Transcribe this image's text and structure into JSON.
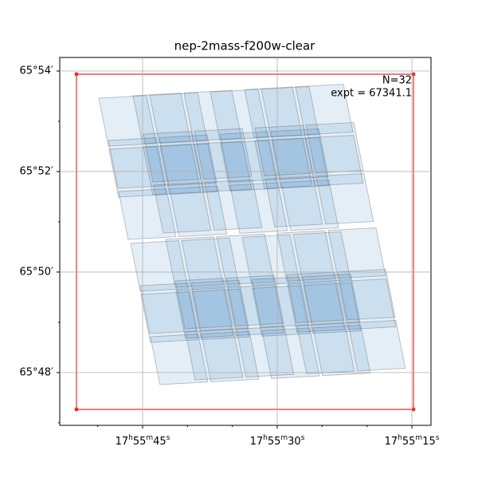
{
  "chart_data": {
    "type": "footprint",
    "title": "nep-2mass-f200w-clear",
    "annotations": [
      "N=32",
      "expt = 67341.1"
    ],
    "xlim": [
      54.23,
      12.87
    ],
    "xticks": [
      {
        "value": 45,
        "label": "17h55m45s"
      },
      {
        "value": 30,
        "label": "17h55m30s"
      },
      {
        "value": 15,
        "label": "17h55m15s"
      }
    ],
    "xminorticks": [
      50,
      40,
      35,
      25,
      20
    ],
    "ylim": [
      46.95,
      54.27
    ],
    "yticks": [
      {
        "value": 54,
        "label": "65°54′"
      },
      {
        "value": 52,
        "label": "65°52′"
      },
      {
        "value": 50,
        "label": "65°50′"
      },
      {
        "value": 48,
        "label": "65°48′"
      }
    ],
    "yminorticks": [
      53,
      51,
      49,
      47
    ],
    "grid": true
  }
}
